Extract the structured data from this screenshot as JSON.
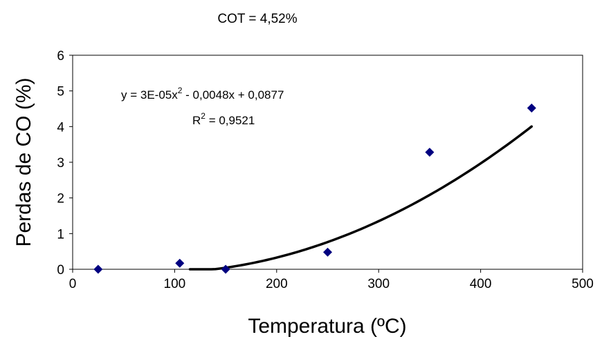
{
  "chart_data": {
    "type": "scatter",
    "title": "COT = 4,52%",
    "xlabel": "Temperatura (ºC)",
    "ylabel": "Perdas de CO (%)",
    "xlim": [
      0,
      500
    ],
    "ylim": [
      0,
      6
    ],
    "x_ticks": [
      0,
      100,
      200,
      300,
      400,
      500
    ],
    "y_ticks": [
      0,
      1,
      2,
      3,
      4,
      5,
      6
    ],
    "grid": false,
    "series": [
      {
        "x": [
          25,
          105,
          150,
          250,
          350,
          450
        ],
        "y": [
          0.0,
          0.17,
          0.0,
          0.48,
          3.28,
          4.52
        ],
        "marker": "diamond",
        "color": "#000080"
      }
    ],
    "trendline": {
      "type": "polynomial-2",
      "coefficients": [
        3e-05,
        -0.0048,
        0.0877
      ],
      "x_range": [
        115,
        450
      ],
      "color": "#000000"
    },
    "annotations": {
      "equation": {
        "prefix": "y = 3E-05x",
        "sup": "2",
        "suffix": " - 0,0048x + 0,0877"
      },
      "r2": {
        "prefix": "R",
        "sup": "2",
        "suffix": " = 0,9521"
      }
    }
  }
}
